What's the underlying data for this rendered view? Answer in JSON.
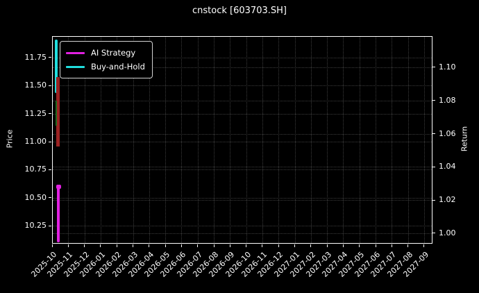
{
  "window": {
    "background": "#000000"
  },
  "chart_data": {
    "type": "line",
    "title": "cnstock [603703.SH]",
    "grid": {
      "on": true,
      "color": "#3d3d3d",
      "style": "dotted"
    },
    "left_axis": {
      "label": "Price",
      "min": 10.089,
      "max": 11.942,
      "tick_labels": [
        "11.75",
        "11.50",
        "11.25",
        "11.00",
        "10.75",
        "10.50",
        "10.25"
      ],
      "tick_values": [
        11.75,
        11.5,
        11.25,
        11.0,
        10.75,
        10.5,
        10.25
      ]
    },
    "right_axis": {
      "label": "Return",
      "min": 0.9937,
      "max": 1.1188,
      "tick_labels": [
        "1.10",
        "1.08",
        "1.06",
        "1.04",
        "1.02",
        "1.00"
      ],
      "tick_values": [
        1.1,
        1.08,
        1.06,
        1.04,
        1.02,
        1.0
      ]
    },
    "x_axis": {
      "tick_labels": [
        "2025-10",
        "2025-11",
        "2025-12",
        "2026-01",
        "2026-02",
        "2026-03",
        "2026-04",
        "2026-05",
        "2026-06",
        "2026-07",
        "2026-08",
        "2026-09",
        "2026-10",
        "2026-11",
        "2026-12",
        "2027-01",
        "2027-02",
        "2027-03",
        "2027-04",
        "2027-05",
        "2027-06",
        "2027-07",
        "2027-08",
        "2027-09"
      ]
    },
    "legend": {
      "position": "upper left",
      "entries": [
        {
          "label": "AI Strategy",
          "color": "#e120e1"
        },
        {
          "label": "Buy-and-Hold",
          "color": "#20dede"
        }
      ]
    },
    "series": [
      {
        "name": "Buy-and-Hold",
        "axis": "right",
        "color": "#20dede",
        "x_frac": 0.0055,
        "width": 4,
        "val_min": 1.085,
        "val_max": 1.117
      },
      {
        "name": "AI Strategy",
        "axis": "right",
        "color": "#e120e1",
        "x_frac": 0.011,
        "width": 4,
        "val_min": 0.995,
        "val_max": 1.0297,
        "head_width": 7,
        "head_height": 6
      }
    ],
    "candlesticks": [
      {
        "kind": "down",
        "color": "#9c2222",
        "x_frac": 0.01,
        "width": 5,
        "val_min": 10.96,
        "val_max": 11.58
      },
      {
        "kind": "up",
        "color": "#1f6b1f",
        "x_frac": 0.008,
        "width": 2,
        "val_min": 11.15,
        "val_max": 11.37
      }
    ]
  }
}
